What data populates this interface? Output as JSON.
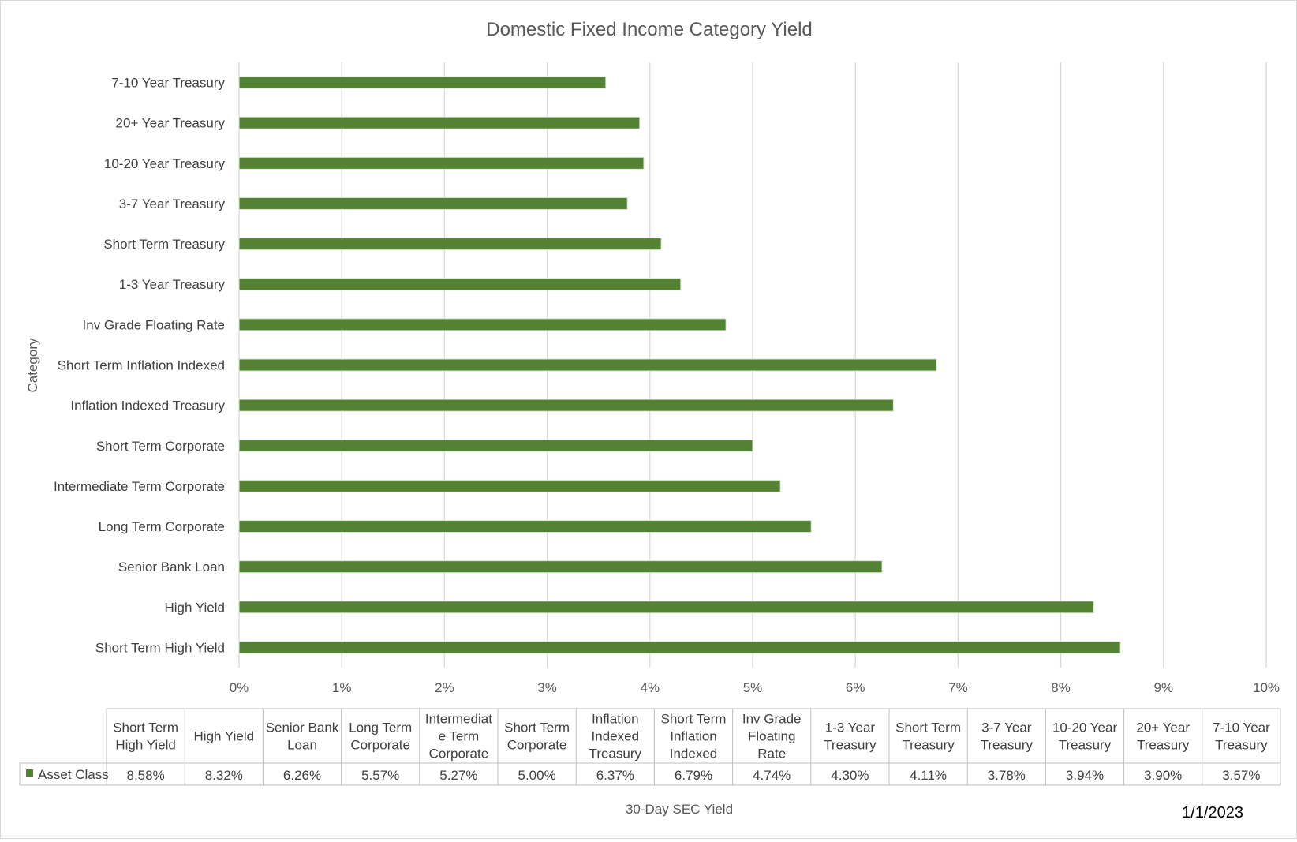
{
  "chart_data": {
    "type": "bar",
    "orientation": "horizontal",
    "title": "Domestic Fixed Income Category Yield",
    "xlabel": "30-Day SEC Yield",
    "ylabel": "Category",
    "date_label": "1/1/2023",
    "xlim": [
      0,
      10
    ],
    "x_ticks": [
      "0%",
      "1%",
      "2%",
      "3%",
      "4%",
      "5%",
      "6%",
      "7%",
      "8%",
      "9%",
      "10%"
    ],
    "bar_color": "#548235",
    "gridlines": true,
    "categories": [
      "Short Term High Yield",
      "High Yield",
      "Senior Bank Loan",
      "Long Term Corporate",
      "Intermediate Term Corporate",
      "Short Term Corporate",
      "Inflation Indexed Treasury",
      "Short Term Inflation Indexed",
      "Inv Grade Floating Rate",
      "1-3 Year Treasury",
      "Short Term Treasury",
      "3-7 Year Treasury",
      "10-20 Year Treasury",
      "20+ Year Treasury",
      "7-10 Year Treasury"
    ],
    "series": [
      {
        "name": "Asset Class",
        "values": [
          8.58,
          8.32,
          6.26,
          5.57,
          5.27,
          5.0,
          6.37,
          6.79,
          4.74,
          4.3,
          4.11,
          3.78,
          3.94,
          3.9,
          3.57
        ]
      }
    ],
    "data_table": {
      "headers": [
        [
          "Short Term",
          "High Yield"
        ],
        [
          "High Yield"
        ],
        [
          "Senior Bank",
          "Loan"
        ],
        [
          "Long Term",
          "Corporate"
        ],
        [
          "Intermediat",
          "e Term",
          "Corporate"
        ],
        [
          "Short Term",
          "Corporate"
        ],
        [
          "Inflation",
          "Indexed",
          "Treasury"
        ],
        [
          "Short Term",
          "Inflation",
          "Indexed"
        ],
        [
          "Inv Grade",
          "Floating",
          "Rate"
        ],
        [
          "1-3 Year",
          "Treasury"
        ],
        [
          "Short Term",
          "Treasury"
        ],
        [
          "3-7 Year",
          "Treasury"
        ],
        [
          "10-20 Year",
          "Treasury"
        ],
        [
          "20+ Year",
          "Treasury"
        ],
        [
          "7-10 Year",
          "Treasury"
        ]
      ],
      "values": [
        "8.58%",
        "8.32%",
        "6.26%",
        "5.57%",
        "5.27%",
        "5.00%",
        "6.37%",
        "6.79%",
        "4.74%",
        "4.30%",
        "4.11%",
        "3.78%",
        "3.94%",
        "3.90%",
        "3.57%"
      ]
    }
  }
}
